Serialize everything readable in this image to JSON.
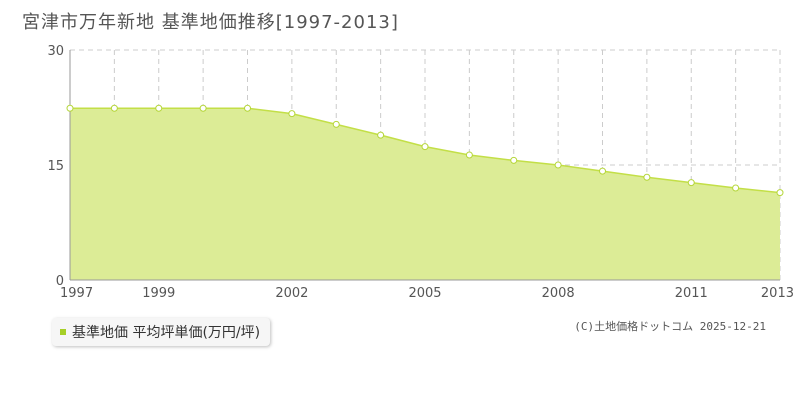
{
  "title": "宮津市万年新地 基準地価推移[1997-2013]",
  "legend": {
    "label": "基準地価 平均坪単価(万円/坪)",
    "color": "#a6cf27"
  },
  "credit": "(C)土地価格ドットコム 2025-12-21",
  "colors": {
    "fill": "#dcec96",
    "line": "#c3df47",
    "marker_stroke": "#b5d63a",
    "grid": "#cccccc"
  },
  "chart_data": {
    "type": "area",
    "x": [
      1997,
      1998,
      1999,
      2000,
      2001,
      2002,
      2003,
      2004,
      2005,
      2006,
      2007,
      2008,
      2009,
      2010,
      2011,
      2012,
      2013
    ],
    "x_tick_labels": [
      "1997",
      "1999",
      "2002",
      "2005",
      "2008",
      "2011",
      "2013"
    ],
    "series": [
      {
        "values": [
          22.4,
          22.4,
          22.4,
          22.4,
          22.4,
          21.7,
          20.3,
          18.9,
          17.4,
          16.3,
          15.6,
          15.0,
          14.2,
          13.4,
          12.7,
          12.0,
          11.4
        ]
      }
    ],
    "ylim": [
      0,
      30
    ],
    "y_ticks": [
      0,
      15,
      30
    ],
    "grid": true,
    "legend_position": "bottom-left"
  }
}
